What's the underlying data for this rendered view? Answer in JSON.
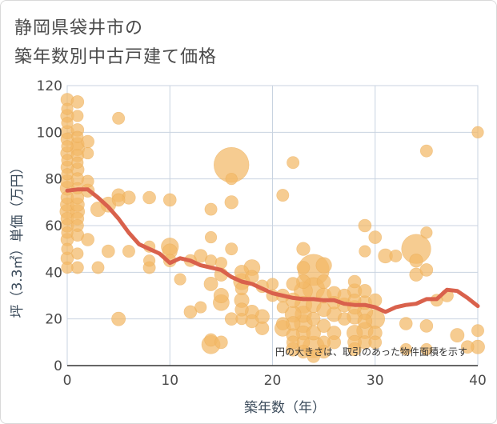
{
  "title_line1": "静岡県袋井市の",
  "title_line2": "築年数別中古戸建て価格",
  "chart_data": {
    "type": "scatter",
    "title": "静岡県袋井市の築年数別中古戸建て価格",
    "xlabel": "築年数（年）",
    "ylabel": "坪（3.3㎡）単価（万円）",
    "xlim": [
      0,
      40
    ],
    "ylim": [
      0,
      120
    ],
    "xticks": [
      "0",
      "10",
      "20",
      "30",
      "40"
    ],
    "yticks": [
      "0",
      "20",
      "40",
      "60",
      "80",
      "100",
      "120"
    ],
    "grid": true,
    "bubble_color": "#f2b866",
    "line_color": "#d9614c",
    "grid_color": "#c8d3e0",
    "note": "円の大きさは、取引のあった物件面積を示す",
    "points": [
      [
        0,
        114,
        1.2
      ],
      [
        0,
        110,
        1.0
      ],
      [
        0,
        107,
        1.3
      ],
      [
        0,
        104,
        1.0
      ],
      [
        0,
        100,
        1.4
      ],
      [
        0,
        97,
        1.2
      ],
      [
        0,
        94,
        1.0
      ],
      [
        0,
        91,
        1.3
      ],
      [
        0,
        88,
        1.0
      ],
      [
        0,
        85,
        1.2
      ],
      [
        0,
        82,
        1.0
      ],
      [
        0,
        79,
        1.3
      ],
      [
        0,
        76,
        1.5
      ],
      [
        0,
        72,
        1.2
      ],
      [
        0,
        69,
        1.4
      ],
      [
        0,
        66,
        1.6
      ],
      [
        0,
        63,
        1.2
      ],
      [
        0,
        60,
        1.3
      ],
      [
        0,
        57,
        1.0
      ],
      [
        0,
        54,
        1.2
      ],
      [
        0,
        50,
        1.0
      ],
      [
        0,
        46,
        1.2
      ],
      [
        0,
        42,
        1.0
      ],
      [
        1,
        113,
        1.2
      ],
      [
        1,
        107,
        1.0
      ],
      [
        1,
        101,
        1.2
      ],
      [
        1,
        98,
        1.0
      ],
      [
        1,
        95,
        1.3
      ],
      [
        1,
        93,
        1.5
      ],
      [
        1,
        90,
        1.2
      ],
      [
        1,
        87,
        1.0
      ],
      [
        1,
        84,
        1.3
      ],
      [
        1,
        80,
        1.2
      ],
      [
        1,
        76,
        1.0
      ],
      [
        1,
        72,
        1.2
      ],
      [
        1,
        69,
        1.4
      ],
      [
        1,
        66,
        1.5
      ],
      [
        1,
        63,
        1.2
      ],
      [
        1,
        60,
        1.1
      ],
      [
        1,
        56,
        1.2
      ],
      [
        1,
        48,
        1.0
      ],
      [
        1,
        42,
        1.1
      ],
      [
        2,
        96,
        1.2
      ],
      [
        2,
        91,
        1.0
      ],
      [
        2,
        79,
        1.1
      ],
      [
        2,
        54,
        1.2
      ],
      [
        2,
        75,
        1.3
      ],
      [
        3,
        67,
        1.6
      ],
      [
        3,
        42,
        1.1
      ],
      [
        4,
        69,
        1.7
      ],
      [
        4,
        49,
        1.2
      ],
      [
        5,
        106,
        1.1
      ],
      [
        5,
        73,
        1.3
      ],
      [
        5,
        71,
        1.2
      ],
      [
        5,
        20,
        1.4
      ],
      [
        6,
        72,
        1.3
      ],
      [
        6,
        49,
        1.1
      ],
      [
        8,
        72,
        1.2
      ],
      [
        8,
        51,
        1.0
      ],
      [
        8,
        45,
        1.0
      ],
      [
        8,
        42,
        1.1
      ],
      [
        10,
        71,
        1.2
      ],
      [
        10,
        51,
        2.2
      ],
      [
        10,
        49,
        1.6
      ],
      [
        10,
        45,
        1.2
      ],
      [
        11,
        37,
        1.0
      ],
      [
        12,
        45,
        1.1
      ],
      [
        12,
        23,
        1.2
      ],
      [
        13,
        47,
        1.3
      ],
      [
        13,
        25,
        1.0
      ],
      [
        14,
        67,
        1.1
      ],
      [
        14,
        55,
        1.0
      ],
      [
        14,
        45,
        1.0
      ],
      [
        14,
        35,
        1.4
      ],
      [
        14,
        9,
        2.5
      ],
      [
        14,
        11,
        1.2
      ],
      [
        15,
        30,
        1.6
      ],
      [
        15,
        27,
        1.9
      ],
      [
        15,
        44,
        1.0
      ],
      [
        15,
        39,
        1.3
      ],
      [
        15,
        10,
        1.2
      ],
      [
        16,
        86,
        9.0
      ],
      [
        16,
        70,
        1.3
      ],
      [
        16,
        50,
        1.1
      ],
      [
        16,
        20,
        1.2
      ],
      [
        16,
        80,
        1.0
      ],
      [
        17,
        40,
        1.5
      ],
      [
        17,
        36,
        2.0
      ],
      [
        17,
        33,
        1.2
      ],
      [
        17,
        28,
        1.6
      ],
      [
        17,
        24,
        1.3
      ],
      [
        17,
        20,
        1.0
      ],
      [
        18,
        42,
        1.9
      ],
      [
        18,
        38,
        1.3
      ],
      [
        18,
        23,
        1.4
      ],
      [
        18,
        19,
        1.3
      ],
      [
        19,
        34,
        1.2
      ],
      [
        19,
        21,
        1.5
      ],
      [
        19,
        16,
        1.3
      ],
      [
        20,
        35,
        1.0
      ],
      [
        20,
        30,
        1.1
      ],
      [
        21,
        73,
        1.1
      ],
      [
        21,
        30,
        1.3
      ],
      [
        21,
        25,
        1.0
      ],
      [
        21,
        18,
        1.2
      ],
      [
        21,
        16,
        1.9
      ],
      [
        22,
        87,
        1.1
      ],
      [
        22,
        35,
        1.3
      ],
      [
        22,
        28,
        1.6
      ],
      [
        22,
        22,
        1.9
      ],
      [
        22,
        18,
        1.5
      ],
      [
        22,
        13,
        1.3
      ],
      [
        22,
        10,
        1.2
      ],
      [
        22,
        7,
        1.4
      ],
      [
        23,
        50,
        1.3
      ],
      [
        23,
        42,
        1.2
      ],
      [
        23,
        36,
        1.4
      ],
      [
        23,
        32,
        2.5
      ],
      [
        23,
        26,
        2.2
      ],
      [
        23,
        22,
        2.0
      ],
      [
        23,
        18,
        2.4
      ],
      [
        23,
        14,
        1.5
      ],
      [
        23,
        10,
        1.2
      ],
      [
        23,
        6,
        1.3
      ],
      [
        24,
        41,
        7.2
      ],
      [
        24,
        33,
        3.6
      ],
      [
        24,
        8,
        3.5
      ],
      [
        24,
        26,
        1.7
      ],
      [
        24,
        20,
        1.3
      ],
      [
        24,
        14,
        1.5
      ],
      [
        24,
        4,
        1.2
      ],
      [
        25,
        43,
        1.8
      ],
      [
        25,
        36,
        1.4
      ],
      [
        25,
        30,
        1.7
      ],
      [
        25,
        24,
        1.5
      ],
      [
        25,
        17,
        1.3
      ],
      [
        25,
        10,
        1.2
      ],
      [
        25,
        6,
        1.3
      ],
      [
        26,
        31,
        1.4
      ],
      [
        26,
        27,
        1.2
      ],
      [
        26,
        22,
        1.6
      ],
      [
        26,
        14,
        1.4
      ],
      [
        26,
        10,
        1.3
      ],
      [
        27,
        30,
        1.3
      ],
      [
        27,
        26,
        1.5
      ],
      [
        27,
        20,
        1.2
      ],
      [
        28,
        36,
        1.2
      ],
      [
        28,
        32,
        1.5
      ],
      [
        28,
        28,
        1.2
      ],
      [
        28,
        25,
        1.4
      ],
      [
        28,
        21,
        1.7
      ],
      [
        28,
        14,
        1.8
      ],
      [
        28,
        10,
        1.4
      ],
      [
        28,
        7,
        1.3
      ],
      [
        29,
        60,
        1.2
      ],
      [
        29,
        49,
        1.0
      ],
      [
        29,
        32,
        1.3
      ],
      [
        29,
        27,
        1.4
      ],
      [
        29,
        23,
        1.8
      ],
      [
        29,
        19,
        1.5
      ],
      [
        29,
        15,
        2.0
      ],
      [
        29,
        10,
        1.3
      ],
      [
        30,
        55,
        1.2
      ],
      [
        30,
        28,
        1.3
      ],
      [
        30,
        20,
        2.7
      ],
      [
        30,
        14,
        1.4
      ],
      [
        30,
        10,
        1.2
      ],
      [
        31,
        47,
        1.5
      ],
      [
        32,
        47,
        1.1
      ],
      [
        33,
        18,
        1.2
      ],
      [
        33,
        7,
        1.0
      ],
      [
        34,
        50,
        6.3
      ],
      [
        34,
        45,
        1.3
      ],
      [
        34,
        39,
        1.3
      ],
      [
        35,
        92,
        1.1
      ],
      [
        35,
        57,
        1.0
      ],
      [
        35,
        41,
        1.2
      ],
      [
        35,
        17,
        1.2
      ],
      [
        35,
        7,
        1.0
      ],
      [
        36,
        28,
        1.1
      ],
      [
        37,
        30,
        1.2
      ],
      [
        38,
        13,
        1.4
      ],
      [
        39,
        8,
        1.2
      ],
      [
        40,
        100,
        1.0
      ],
      [
        40,
        15,
        1.1
      ],
      [
        40,
        8,
        1.4
      ]
    ],
    "trend": {
      "x": [
        0,
        1,
        2,
        3,
        4,
        5,
        6,
        7,
        8,
        9,
        10,
        11,
        12,
        13,
        14,
        15,
        16,
        17,
        18,
        19,
        20,
        21,
        22,
        23,
        24,
        25,
        26,
        27,
        28,
        29,
        30,
        31,
        32,
        33,
        34,
        35,
        36,
        37,
        38,
        39,
        40
      ],
      "y": [
        75,
        75.5,
        75.5,
        72,
        68,
        63,
        57,
        52,
        50,
        48,
        44,
        46,
        45,
        43,
        42,
        41,
        38,
        36,
        35,
        33,
        31,
        30,
        29,
        28.5,
        28.5,
        28,
        28,
        26.5,
        26,
        26,
        25,
        23,
        25,
        26,
        26.5,
        28.5,
        28.5,
        32.5,
        32,
        29,
        25.5
      ]
    }
  }
}
